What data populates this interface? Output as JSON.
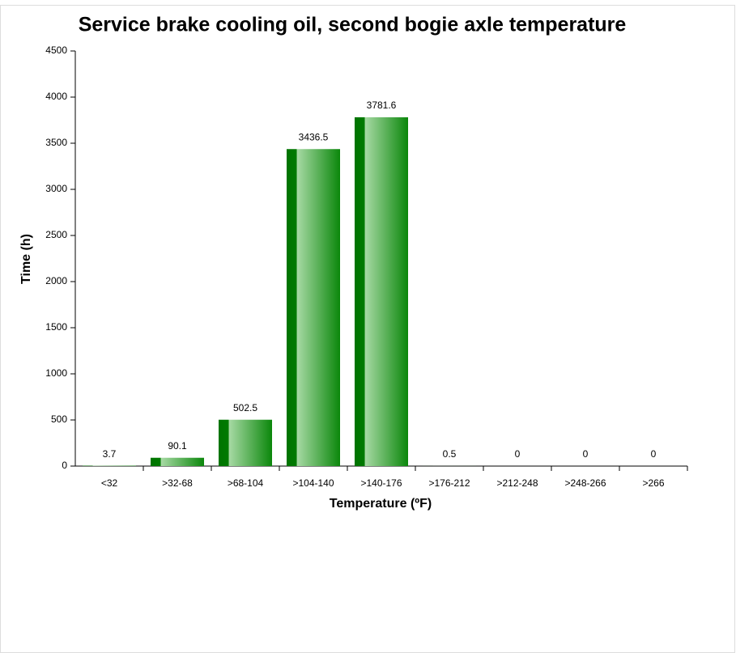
{
  "chart_data": {
    "type": "bar",
    "title": "Service brake cooling oil, second bogie axle temperature",
    "x_label": "Temperature (ºF)",
    "y_label": "Time (h)",
    "categories": [
      "<32",
      ">32-68",
      ">68-104",
      ">104-140",
      ">140-176",
      ">176-212",
      ">212-248",
      ">248-266",
      ">266"
    ],
    "values": [
      3.7,
      90.1,
      502.5,
      3436.5,
      3781.6,
      0.5,
      0,
      0,
      0
    ],
    "color": "#0b870b",
    "ylim": [
      0,
      4500
    ],
    "yticks": [
      0,
      500,
      1000,
      1500,
      2000,
      2500,
      3000,
      3500,
      4000,
      4500
    ],
    "grid": false
  }
}
